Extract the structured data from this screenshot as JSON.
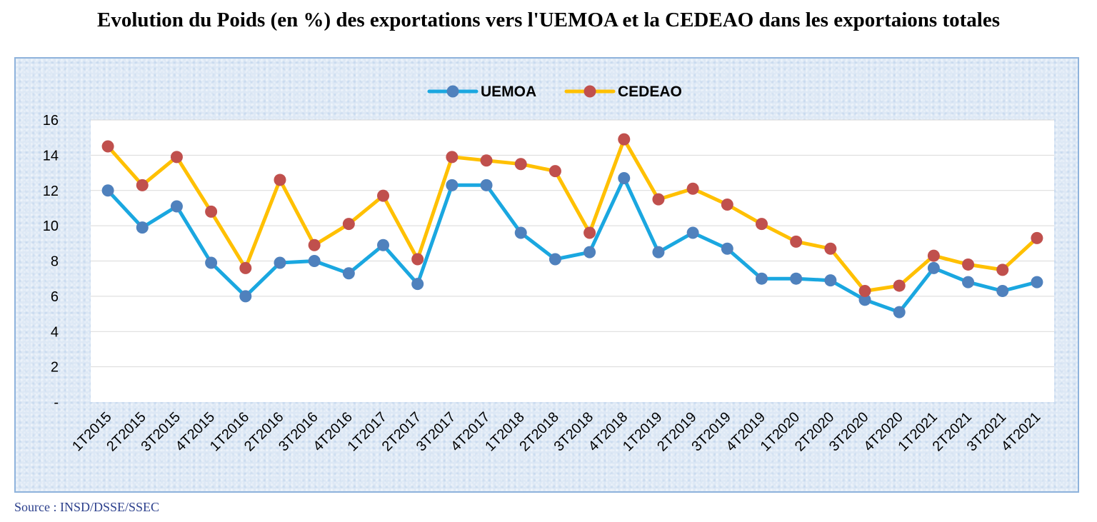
{
  "title": "Evolution du Poids (en %) des exportations vers l'UEMOA et la CEDEAO dans les exportaions totales",
  "source": "Source   : INSD/DSSE/SSEC",
  "chart_data": {
    "type": "line",
    "title": "Evolution du Poids (en %) des exportations vers l'UEMOA et la CEDEAO dans les exportaions totales",
    "xlabel": "",
    "ylabel": "",
    "ylim": [
      0,
      16
    ],
    "yticks": [
      "-",
      "2",
      "4",
      "6",
      "8",
      "10",
      "12",
      "14",
      "16"
    ],
    "grid": true,
    "legend_position": "top-center",
    "categories": [
      "1T2015",
      "2T2015",
      "3T2015",
      "4T2015",
      "1T2016",
      "2T2016",
      "3T2016",
      "4T2016",
      "1T2017",
      "2T2017",
      "3T2017",
      "4T2017",
      "1T2018",
      "2T2018",
      "3T2018",
      "4T2018",
      "1T2019",
      "2T2019",
      "3T2019",
      "4T2019",
      "1T2020",
      "2T2020",
      "3T2020",
      "4T2020",
      "1T2021",
      "2T2021",
      "3T2021",
      "4T2021"
    ],
    "series": [
      {
        "name": "UEMOA",
        "line_color": "#1aa7e0",
        "marker_color": "#4f81bd",
        "values": [
          12.0,
          9.9,
          11.1,
          7.9,
          6.0,
          7.9,
          8.0,
          7.3,
          8.9,
          6.7,
          12.3,
          12.3,
          9.6,
          8.1,
          8.5,
          12.7,
          8.5,
          9.6,
          8.7,
          7.0,
          7.0,
          6.9,
          5.8,
          5.1,
          7.6,
          6.8,
          6.3,
          6.8
        ]
      },
      {
        "name": "CEDEAO",
        "line_color": "#ffc000",
        "marker_color": "#c0504d",
        "values": [
          14.5,
          12.3,
          13.9,
          10.8,
          7.6,
          12.6,
          8.9,
          10.1,
          11.7,
          8.1,
          13.9,
          13.7,
          13.5,
          13.1,
          9.6,
          14.9,
          11.5,
          12.1,
          11.2,
          10.1,
          9.1,
          8.7,
          6.3,
          6.6,
          8.3,
          7.8,
          7.5,
          9.3
        ]
      }
    ]
  }
}
